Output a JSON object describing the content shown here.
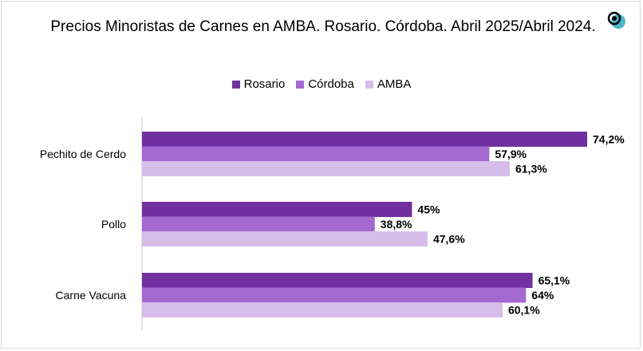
{
  "chart_data": {
    "type": "bar",
    "orientation": "horizontal",
    "title": "Precios Minoristas de Carnes en AMBA. Rosario. Córdoba.  Abril 2025/Abril 2024.",
    "categories": [
      "Pechito de Cerdo",
      "Pollo",
      "Carne Vacuna"
    ],
    "series": [
      {
        "name": "Rosario",
        "color": "#7030a0",
        "values": [
          74.2,
          45,
          65.1
        ],
        "labels": [
          "74,2%",
          "45%",
          "65,1%"
        ]
      },
      {
        "name": "Córdoba",
        "color": "#a569d2",
        "values": [
          57.9,
          38.8,
          64
        ],
        "labels": [
          "57,9%",
          "38,8%",
          "64%"
        ]
      },
      {
        "name": "AMBA",
        "color": "#d7bdea",
        "values": [
          61.3,
          47.6,
          60.1
        ],
        "labels": [
          "61,3%",
          "47,6%",
          "60,1%"
        ]
      }
    ],
    "xlim": [
      0,
      84
    ],
    "grid": false,
    "legend_position": "top-center",
    "xlabel": "",
    "ylabel": ""
  },
  "logo_icon": "eye-logo-icon"
}
